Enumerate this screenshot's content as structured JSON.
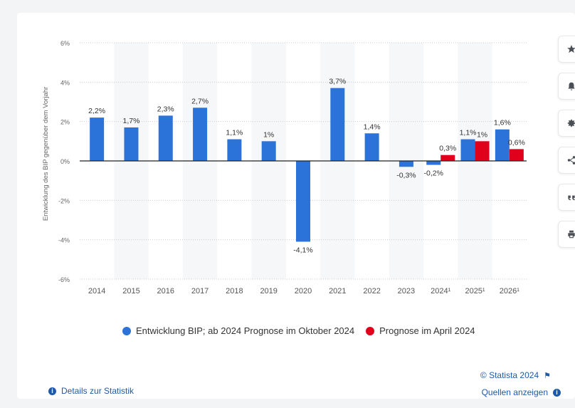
{
  "tools": [
    {
      "name": "star-icon"
    },
    {
      "name": "bell-icon"
    },
    {
      "name": "gear-icon"
    },
    {
      "name": "share-icon"
    },
    {
      "name": "quote-icon"
    },
    {
      "name": "print-icon"
    }
  ],
  "colors": {
    "primary": "#2b73d9",
    "secondary": "#e0001b"
  },
  "legend": {
    "primary": "Entwicklung BIP; ab 2024 Prognose im Oktober 2024",
    "secondary": "Prognose im April 2024"
  },
  "footer": {
    "credit": "© Statista 2024",
    "sources": "Quellen anzeigen",
    "details": "Details zur Statistik",
    "info_glyph": "i",
    "flag_glyph": "⚑"
  },
  "chart_data": {
    "type": "bar",
    "ylabel": "Entwicklung des BIP gegenüber dem Vorjahr",
    "ylim": [
      -6,
      6
    ],
    "yticks": [
      6,
      4,
      2,
      0,
      -2,
      -4,
      -6
    ],
    "ytick_labels": [
      "6%",
      "4%",
      "2%",
      "0%",
      "-2%",
      "-4%",
      "-6%"
    ],
    "categories": [
      "2014",
      "2015",
      "2016",
      "2017",
      "2018",
      "2019",
      "2020",
      "2021",
      "2022",
      "2023",
      "2024¹",
      "2025¹",
      "2026¹"
    ],
    "series": [
      {
        "name": "Entwicklung BIP; ab 2024 Prognose im Oktober 2024",
        "values": [
          2.2,
          1.7,
          2.3,
          2.7,
          1.1,
          1.0,
          -4.1,
          3.7,
          1.4,
          -0.3,
          -0.2,
          1.1,
          1.6
        ],
        "labels": [
          "2,2%",
          "1,7%",
          "2,3%",
          "2,7%",
          "1,1%",
          "1%",
          "-4,1%",
          "3,7%",
          "1,4%",
          "-0,3%",
          "-0,2%",
          "1,1%",
          "1,6%"
        ]
      },
      {
        "name": "Prognose im April 2024",
        "values": [
          null,
          null,
          null,
          null,
          null,
          null,
          null,
          null,
          null,
          null,
          0.3,
          1.0,
          0.6
        ],
        "labels": [
          null,
          null,
          null,
          null,
          null,
          null,
          null,
          null,
          null,
          null,
          "0,3%",
          "1%",
          "0,6%"
        ]
      }
    ],
    "grid": true,
    "legend_position": "bottom"
  }
}
